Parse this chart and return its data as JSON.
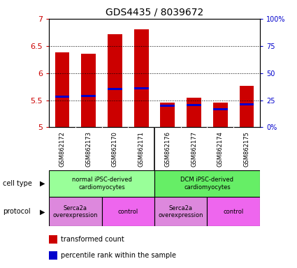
{
  "title": "GDS4435 / 8039672",
  "samples": [
    "GSM862172",
    "GSM862173",
    "GSM862170",
    "GSM862171",
    "GSM862176",
    "GSM862177",
    "GSM862174",
    "GSM862175"
  ],
  "bar_values": [
    6.38,
    6.35,
    6.72,
    6.8,
    5.45,
    5.54,
    5.46,
    5.76
  ],
  "percentile_values": [
    5.57,
    5.58,
    5.71,
    5.72,
    5.4,
    5.41,
    5.33,
    5.42
  ],
  "ylim": [
    5.0,
    7.0
  ],
  "yticks": [
    5.0,
    5.5,
    6.0,
    6.5,
    7.0
  ],
  "ytick_labels": [
    "5",
    "5.5",
    "6",
    "6.5",
    "7"
  ],
  "y2_ticks": [
    0,
    25,
    50,
    75,
    100
  ],
  "y2_labels": [
    "0%",
    "25",
    "50",
    "75",
    "100%"
  ],
  "bar_color": "#cc0000",
  "percentile_color": "#0000cc",
  "bar_width": 0.55,
  "cell_type_groups": [
    {
      "label": "normal iPSC-derived\ncardiomyocytes",
      "start": 0,
      "end": 4,
      "color": "#99ff99"
    },
    {
      "label": "DCM iPSC-derived\ncardiomyocytes",
      "start": 4,
      "end": 8,
      "color": "#66ee66"
    }
  ],
  "protocol_groups": [
    {
      "label": "Serca2a\noverexpression",
      "start": 0,
      "end": 2,
      "color": "#dd88dd"
    },
    {
      "label": "control",
      "start": 2,
      "end": 4,
      "color": "#ee66ee"
    },
    {
      "label": "Serca2a\noverexpression",
      "start": 4,
      "end": 6,
      "color": "#dd88dd"
    },
    {
      "label": "control",
      "start": 6,
      "end": 8,
      "color": "#ee66ee"
    }
  ],
  "legend_items": [
    {
      "color": "#cc0000",
      "label": "transformed count"
    },
    {
      "color": "#0000cc",
      "label": "percentile rank within the sample"
    }
  ],
  "left_label_cell_type": "cell type",
  "left_label_protocol": "protocol",
  "tick_label_color_left": "#cc0000",
  "tick_label_color_right": "#0000cc",
  "sample_bg_color": "#cccccc",
  "background_color": "#ffffff",
  "plot_bg_color": "#ffffff",
  "title_fontsize": 10,
  "figwidth": 4.25,
  "figheight": 3.84,
  "dpi": 100
}
